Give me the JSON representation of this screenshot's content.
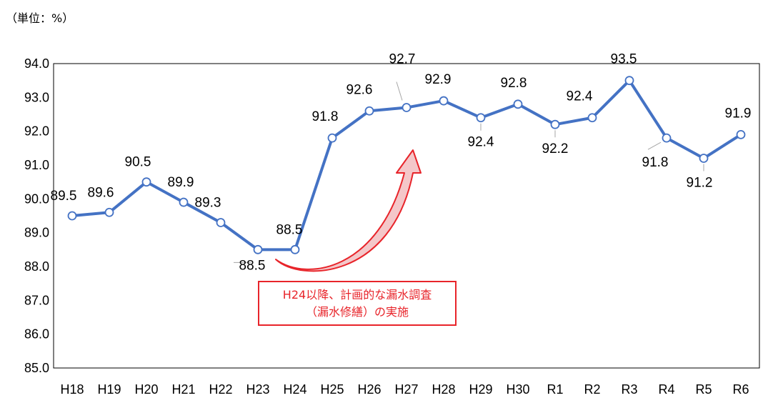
{
  "unit_label": "（単位：%）",
  "annotation": {
    "line1": "H24以降、計画的な漏水調査",
    "line2": "（漏水修繕）の実施"
  },
  "colors": {
    "series": "#4472c4",
    "callout": "#e8242a",
    "grid": "#000000"
  },
  "chart_data": {
    "type": "line",
    "categories": [
      "H18",
      "H19",
      "H20",
      "H21",
      "H22",
      "H23",
      "H24",
      "H25",
      "H26",
      "H27",
      "H28",
      "H29",
      "H30",
      "R1",
      "R2",
      "R3",
      "R4",
      "R5",
      "R6"
    ],
    "values": [
      89.5,
      89.6,
      90.5,
      89.9,
      89.3,
      88.5,
      88.5,
      91.8,
      92.6,
      92.7,
      92.9,
      92.4,
      92.8,
      92.2,
      92.4,
      93.5,
      91.8,
      91.2,
      91.9
    ],
    "data_labels": [
      "89.5",
      "89.6",
      "90.5",
      "89.9",
      "89.3",
      "88.5",
      "88.5",
      "91.8",
      "92.6",
      "92.7",
      "92.9",
      "92.4",
      "92.8",
      "92.2",
      "92.4",
      "93.5",
      "91.8",
      "91.2",
      "91.9"
    ],
    "ylim": [
      85.0,
      94.0
    ],
    "yticks": [
      "85.0",
      "86.0",
      "87.0",
      "88.0",
      "89.0",
      "90.0",
      "91.0",
      "92.0",
      "93.0",
      "94.0"
    ],
    "marker": "open-circle",
    "grid": false,
    "legend": "none",
    "title": "",
    "xlabel": "",
    "ylabel": ""
  }
}
